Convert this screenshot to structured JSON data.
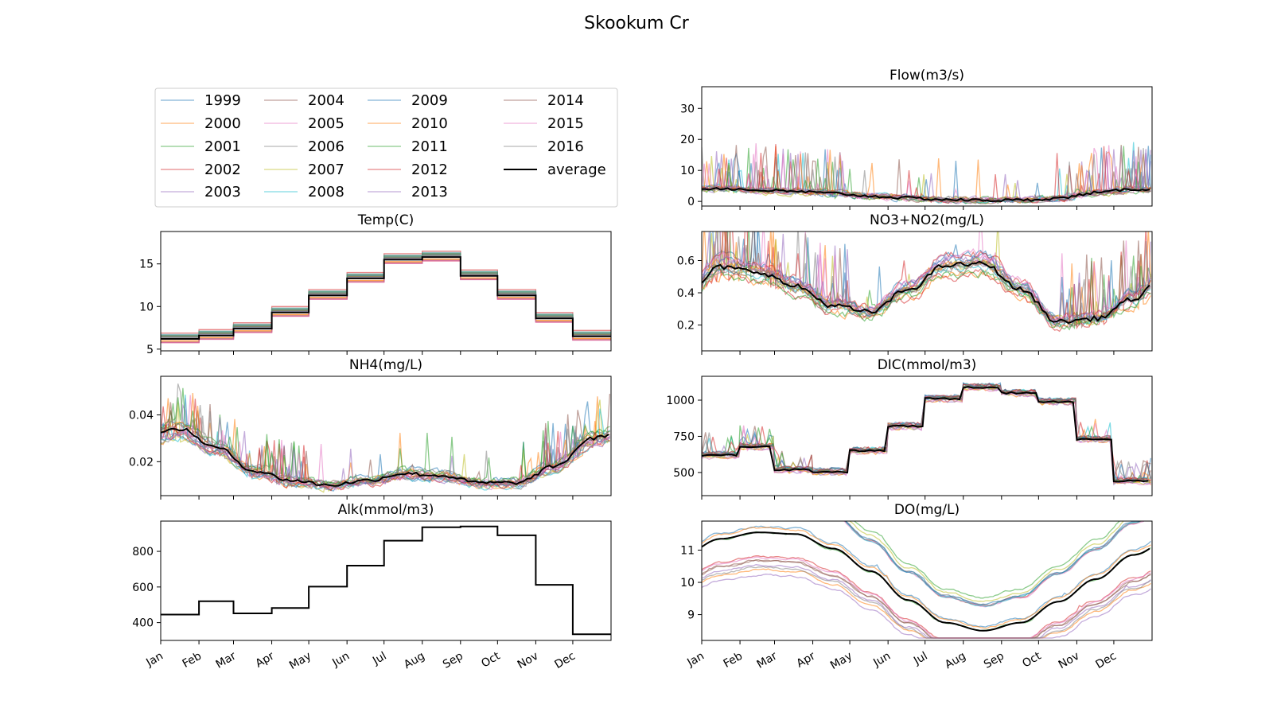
{
  "figure": {
    "title": "Skookum Cr"
  },
  "months": [
    "Jan",
    "Feb",
    "Mar",
    "Apr",
    "May",
    "Jun",
    "Jul",
    "Aug",
    "Sep",
    "Oct",
    "Nov",
    "Dec"
  ],
  "legend": {
    "years": [
      "1999",
      "2000",
      "2001",
      "2002",
      "2003",
      "2004",
      "2005",
      "2006",
      "2007",
      "2008",
      "2009",
      "2010",
      "2011",
      "2012",
      "2013",
      "2014",
      "2015",
      "2016"
    ],
    "average_label": "average",
    "year_colors": [
      "#1f77b4",
      "#ff7f0e",
      "#2ca02c",
      "#d62728",
      "#9467bd",
      "#8c564b",
      "#e377c2",
      "#7f7f7f",
      "#bcbd22",
      "#17becf",
      "#1f77b4",
      "#ff7f0e",
      "#2ca02c",
      "#d62728",
      "#9467bd",
      "#8c564b",
      "#e377c2",
      "#7f7f7f"
    ],
    "average_color": "#000000"
  },
  "chart_data": [
    {
      "type": "line",
      "id": "temp",
      "title": "Temp(C)",
      "ylim": [
        4.8,
        18.8
      ],
      "yticks": [
        5,
        10,
        15
      ],
      "pattern": "monthly_step",
      "average_monthly": [
        6.2,
        6.6,
        7.4,
        9.3,
        11.3,
        13.3,
        15.5,
        15.8,
        13.6,
        11.3,
        8.6,
        6.5
      ],
      "spread": 1.4
    },
    {
      "type": "line",
      "id": "nh4",
      "title": "NH4(mg/L)",
      "ylim": [
        0.0055,
        0.0565
      ],
      "yticks": [
        0.02,
        0.04
      ],
      "pattern": "daily",
      "average_monthly": [
        0.034,
        0.026,
        0.016,
        0.012,
        0.01,
        0.012,
        0.015,
        0.014,
        0.011,
        0.011,
        0.018,
        0.03
      ],
      "noise": 0.0025,
      "spikes": 0.018
    },
    {
      "type": "line",
      "id": "alk",
      "title": "Alk(mmol/m3)",
      "ylim": [
        300,
        970
      ],
      "yticks": [
        400,
        600,
        800
      ],
      "pattern": "monthly_step",
      "average_monthly": [
        445,
        520,
        452,
        482,
        602,
        720,
        860,
        935,
        940,
        890,
        612,
        335
      ],
      "spread": 0
    },
    {
      "type": "line",
      "id": "flow",
      "title": "Flow(m3/s)",
      "ylim": [
        -1.5,
        37
      ],
      "yticks": [
        0,
        10,
        20,
        30
      ],
      "pattern": "daily",
      "average_monthly": [
        4.2,
        3.6,
        3.2,
        2.6,
        1.7,
        1.1,
        0.6,
        0.35,
        0.4,
        1.0,
        2.8,
        3.9
      ],
      "noise": 1.5,
      "spikes": 15
    },
    {
      "type": "line",
      "id": "no3",
      "title": "NO3+NO2(mg/L)",
      "ylim": [
        0.04,
        0.78
      ],
      "yticks": [
        0.2,
        0.4,
        0.6
      ],
      "pattern": "daily",
      "average_monthly": [
        0.56,
        0.53,
        0.44,
        0.32,
        0.28,
        0.42,
        0.57,
        0.58,
        0.42,
        0.22,
        0.24,
        0.36
      ],
      "noise": 0.05,
      "spikes": 0.4
    },
    {
      "type": "line",
      "id": "dic",
      "title": "DIC(mmol/m3)",
      "ylim": [
        340,
        1165
      ],
      "yticks": [
        500,
        750,
        1000
      ],
      "pattern": "monthly_step",
      "average_monthly": [
        620,
        680,
        520,
        505,
        650,
        820,
        1010,
        1090,
        1050,
        990,
        730,
        440
      ],
      "spread": 30,
      "noise": 30,
      "spikes": 150
    },
    {
      "type": "line",
      "id": "do",
      "title": "DO(mg/L)",
      "ylim": [
        8.2,
        11.9
      ],
      "yticks": [
        9,
        10,
        11
      ],
      "pattern": "daily",
      "average_monthly": [
        11.35,
        11.55,
        11.5,
        11.05,
        10.35,
        9.45,
        8.75,
        8.5,
        8.75,
        9.4,
        10.1,
        10.85
      ],
      "noise": 0.05,
      "spikes": 0.1
    }
  ]
}
